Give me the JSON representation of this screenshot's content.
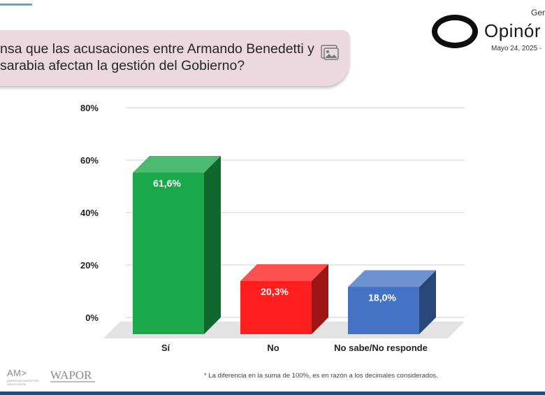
{
  "header": {
    "question": "nsa que las acusaciones entre Armando Benedetti y",
    "question_line2": "sarabia afectan la gestión del Gobierno?",
    "brand_top": "Ger",
    "brand_name": "Opinór",
    "brand_date": "Mayo 24, 2025 -"
  },
  "chart_data": {
    "type": "bar",
    "categories": [
      "Sí",
      "No",
      "No sabe/No responde"
    ],
    "values": [
      61.6,
      20.3,
      18.0
    ],
    "value_labels": [
      "61,6%",
      "20,3%",
      "18,0%"
    ],
    "colors": [
      "#1aa84a",
      "#ff1f1f",
      "#4472c4"
    ],
    "yticks": [
      "0%",
      "20%",
      "40%",
      "60%",
      "80%"
    ],
    "ylim": [
      0,
      80
    ],
    "grid": true
  },
  "footer": {
    "ama_logo": "AM>",
    "ama_sub": "AMERICAN MARKETING ASSOCIATION",
    "wapor_logo": "WAPOR",
    "footnote": "* La diferencia en la suma de 100%, es en razón a los decimales considerados."
  }
}
